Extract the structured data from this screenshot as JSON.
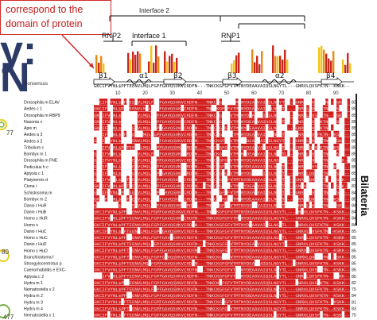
{
  "callout": {
    "line1": "correspond to the",
    "line2": "domain of protein"
  },
  "left_letters": {
    "l1": "y:",
    "l2": "N"
  },
  "side_numbers": {
    "n1": "77",
    "n2": "80",
    "n3": "477"
  },
  "interfaces": {
    "interface2": "Interface 2",
    "interface1": "Interface 1"
  },
  "motifs": {
    "rnp2": "RNP2",
    "rnp1": "RNP1"
  },
  "secondary_structure": [
    "β1",
    "α1",
    "β2",
    "β3",
    "α2",
    "β4"
  ],
  "consensus_label": "Consensus",
  "consensus_sequence": "GKCIFVYNL$PFTEENVLMQLFGPFGAVQSVKVIRDFN---TNKCKGFGFVTMTNYDEAAVAIQSLNGYTL---GNRVLQVSFKTN--KSKK--",
  "ruler": [
    "10",
    "20",
    "30",
    "40",
    "50",
    "60",
    "70",
    "80",
    "90"
  ],
  "group_label": "Bilateria",
  "sequences": [
    {
      "name": "Drosophila m ELAV",
      "len": "83"
    },
    {
      "name": "Aedes c 1",
      "len": "85"
    },
    {
      "name": "Drosophila m RBP9",
      "len": "85"
    },
    {
      "name": "Nasonia v",
      "len": "85"
    },
    {
      "name": "Apis m",
      "len": "85"
    },
    {
      "name": "Aedes a 3",
      "len": "85"
    },
    {
      "name": "Aedes a 2",
      "len": "85"
    },
    {
      "name": "Tribolium c",
      "len": "85"
    },
    {
      "name": "Bombyx m 1",
      "len": "85"
    },
    {
      "name": "Drosophila m FNE",
      "len": "85"
    },
    {
      "name": "Pediculus h c",
      "len": "85"
    },
    {
      "name": "Aplysia c 1",
      "len": "85"
    },
    {
      "name": "Platynereis d",
      "len": "83"
    },
    {
      "name": "Ciona i",
      "len": "83"
    },
    {
      "name": "Schistosoma m",
      "len": "84"
    },
    {
      "name": "Bombyx m 2",
      "len": "85"
    },
    {
      "name": "Danio r HuR",
      "len": "84"
    },
    {
      "name": "Danio r HuB",
      "len": "84"
    },
    {
      "name": "Homo s HuR",
      "len": "84"
    },
    {
      "name": "Homo s",
      "len": "84"
    },
    {
      "name": "Danio r HuC",
      "len": "85"
    },
    {
      "name": "Homo s HuC",
      "len": "85"
    },
    {
      "name": "Danio r HuD",
      "len": "85"
    },
    {
      "name": "Homo s HuD",
      "len": "85"
    },
    {
      "name": "Branchiostoma f",
      "len": "85"
    },
    {
      "name": "Strongylocentrotus p",
      "len": "85"
    },
    {
      "name": "Caenorhabditis e EXC-",
      "len": "85"
    },
    {
      "name": "Aplysia c 2",
      "len": "85"
    },
    {
      "name": "Hydra m 1",
      "len": "82"
    },
    {
      "name": "Nematostella v 2",
      "len": "75"
    },
    {
      "name": "Hydra m 2",
      "len": "84"
    },
    {
      "name": "Hydra m 3",
      "len": "81"
    },
    {
      "name": "Hydra m 4",
      "len": "83"
    },
    {
      "name": "Nematostella v 1",
      "len": "75"
    }
  ],
  "colors": {
    "highlight": "#d21d1d",
    "conservation_red": "#c8281e",
    "conservation_orange": "#e88a12",
    "conservation_yellow": "#f2c316",
    "callout": "#d22a2a",
    "letters": "#2b3a66",
    "ring_yellow": "#e8d020",
    "ring_green": "#79b44a"
  }
}
